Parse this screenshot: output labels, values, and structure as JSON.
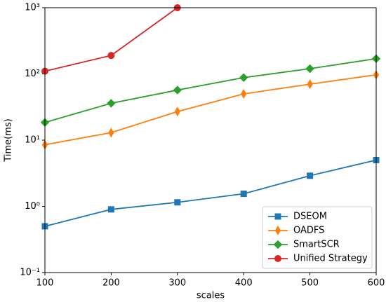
{
  "chart_data": {
    "type": "line",
    "xlabel": "scales",
    "ylabel": "Time(ms)",
    "x": [
      100,
      200,
      300,
      400,
      500,
      600
    ],
    "xlim": [
      100,
      600
    ],
    "xticks": [
      100,
      200,
      300,
      400,
      500,
      600
    ],
    "ylim": [
      0.1,
      1000
    ],
    "yscale": "log",
    "yticks": [
      {
        "value": 0.1,
        "label": "10⁻¹"
      },
      {
        "value": 1,
        "label": "10⁰"
      },
      {
        "value": 10,
        "label": "10¹"
      },
      {
        "value": 100,
        "label": "10²"
      },
      {
        "value": 1000,
        "label": "10³"
      }
    ],
    "legend": "lower right",
    "series": [
      {
        "name": "DSEOM",
        "color": "#1f77b4",
        "marker": "square",
        "values": [
          0.5,
          0.9,
          1.15,
          1.55,
          2.9,
          5.0
        ]
      },
      {
        "name": "OADFS",
        "color": "#ff7f0e",
        "marker": "thin-diamond",
        "values": [
          8.5,
          13,
          27,
          50,
          70,
          97
        ]
      },
      {
        "name": "SmartSCR",
        "color": "#2ca02c",
        "marker": "diamond",
        "values": [
          18.5,
          36,
          57,
          88,
          120,
          170
        ]
      },
      {
        "name": "Unified Strategy",
        "color": "#d62728",
        "marker": "circle",
        "values": [
          110,
          190,
          1000,
          null,
          null,
          null
        ]
      }
    ]
  }
}
